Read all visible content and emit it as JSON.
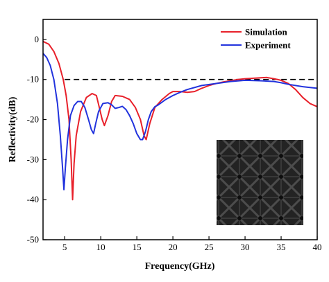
{
  "chart_data": {
    "type": "line",
    "xlabel": "Frequency(GHz)",
    "ylabel": "Reflectivity(dB)",
    "xlim": [
      2,
      40
    ],
    "ylim": [
      -50,
      5
    ],
    "xticks": [
      5,
      10,
      15,
      20,
      25,
      30,
      35,
      40
    ],
    "yticks": [
      0,
      -10,
      -20,
      -30,
      -40,
      -50
    ],
    "xtick_labels": [
      "5",
      "10",
      "15",
      "20",
      "25",
      "30",
      "35",
      "40"
    ],
    "ytick_labels": [
      "0",
      "-10",
      "-20",
      "-30",
      "-40",
      "-50"
    ],
    "legend_position": "top-right",
    "grid": false,
    "reference_line": {
      "y": -10,
      "style": "dashed",
      "color": "#000000"
    },
    "inset": "photograph of a dark lattice-structured sample",
    "series": [
      {
        "name": "Simulation",
        "color": "#e8202a",
        "x": [
          2,
          2.8,
          3.5,
          4.2,
          4.8,
          5.2,
          5.6,
          5.9,
          6.1,
          6.3,
          6.6,
          7.2,
          8,
          8.8,
          9.4,
          9.8,
          10.2,
          10.5,
          11,
          11.5,
          12,
          13,
          14,
          14.8,
          15.5,
          16,
          16.3,
          16.8,
          17.5,
          18.5,
          19.5,
          20,
          21,
          22,
          23,
          24,
          25,
          26,
          27,
          28,
          29,
          30,
          31,
          32,
          33,
          34,
          35,
          36,
          37,
          38,
          39,
          40
        ],
        "y": [
          -0.5,
          -1.2,
          -3,
          -6,
          -10,
          -14,
          -20,
          -30,
          -40,
          -31,
          -24,
          -18,
          -14.5,
          -13.5,
          -14,
          -17,
          -20,
          -21.5,
          -19,
          -15.5,
          -14,
          -14.2,
          -15,
          -17,
          -20,
          -24,
          -25,
          -21,
          -17,
          -15,
          -13.5,
          -13,
          -13,
          -13.2,
          -13,
          -12.2,
          -11.5,
          -11,
          -10.6,
          -10.3,
          -10,
          -9.8,
          -9.7,
          -9.6,
          -9.5,
          -9.8,
          -10.2,
          -11,
          -12.5,
          -14.5,
          -16,
          -16.8
        ]
      },
      {
        "name": "Experiment",
        "color": "#2233dd",
        "x": [
          2,
          2.5,
          3,
          3.5,
          4,
          4.4,
          4.7,
          4.9,
          5.1,
          5.4,
          5.8,
          6.3,
          6.8,
          7.3,
          7.8,
          8.3,
          8.7,
          9,
          9.3,
          9.7,
          10.3,
          11,
          11.5,
          12,
          12.5,
          13,
          13.5,
          14,
          14.5,
          15,
          15.5,
          15.8,
          16.2,
          16.6,
          17,
          17.5,
          18,
          19,
          20,
          21,
          22,
          24,
          26,
          28,
          30,
          32,
          34,
          35,
          36,
          38,
          40
        ],
        "y": [
          -3.5,
          -4.5,
          -6.5,
          -10,
          -16,
          -24,
          -32,
          -37.5,
          -32,
          -25,
          -19,
          -16.5,
          -15.5,
          -15.5,
          -17,
          -20,
          -22.5,
          -23.5,
          -21,
          -18,
          -16,
          -15.8,
          -16.3,
          -17.2,
          -17,
          -16.7,
          -17.5,
          -19,
          -21,
          -23.5,
          -25,
          -25,
          -23,
          -20,
          -18,
          -16.8,
          -16.3,
          -15,
          -14,
          -13.2,
          -12.5,
          -11.5,
          -11,
          -10.5,
          -10.2,
          -10.3,
          -10.5,
          -10.8,
          -11.2,
          -11.8,
          -12.2
        ]
      }
    ]
  }
}
